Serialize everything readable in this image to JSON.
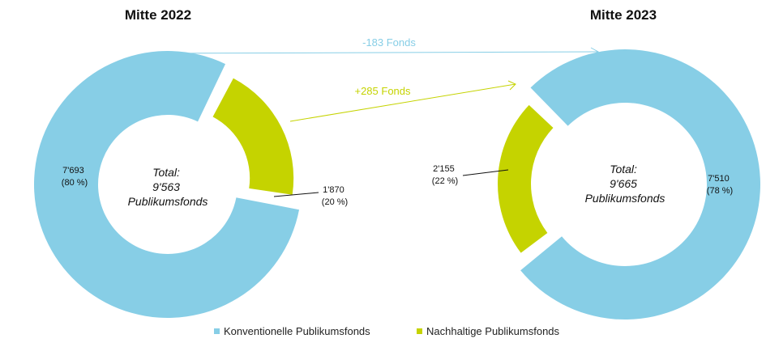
{
  "chart_data": {
    "type": "donut",
    "legend_position": "bottom",
    "legend": [
      {
        "name": "Konventionelle Publikumsfonds",
        "color": "#87CEE6"
      },
      {
        "name": "Nachhaltige Publikumsfonds",
        "color": "#C5D300"
      }
    ],
    "charts": [
      {
        "period": "Mitte 2022",
        "total_lines": [
          "Total:",
          "9'563",
          "Publikumsfonds"
        ],
        "slices": [
          {
            "series": "Konventionelle Publikumsfonds",
            "value": 7693,
            "value_label": "7'693",
            "percent_label": "(80 %)"
          },
          {
            "series": "Nachhaltige Publikumsfonds",
            "value": 1870,
            "value_label": "1'870",
            "percent_label": "(20 %)"
          }
        ]
      },
      {
        "period": "Mitte 2023",
        "total_lines": [
          "Total:",
          "9'665",
          "Publikumsfonds"
        ],
        "slices": [
          {
            "series": "Konventionelle Publikumsfonds",
            "value": 7510,
            "value_label": "7'510",
            "percent_label": "(78 %)"
          },
          {
            "series": "Nachhaltige Publikumsfonds",
            "value": 2155,
            "value_label": "2'155",
            "percent_label": "(22 %)"
          }
        ]
      }
    ],
    "changes": [
      {
        "label": "-183 Fonds",
        "series": "Konventionelle Publikumsfonds"
      },
      {
        "label": "+285 Fonds",
        "series": "Nachhaltige Publikumsfonds"
      }
    ]
  }
}
